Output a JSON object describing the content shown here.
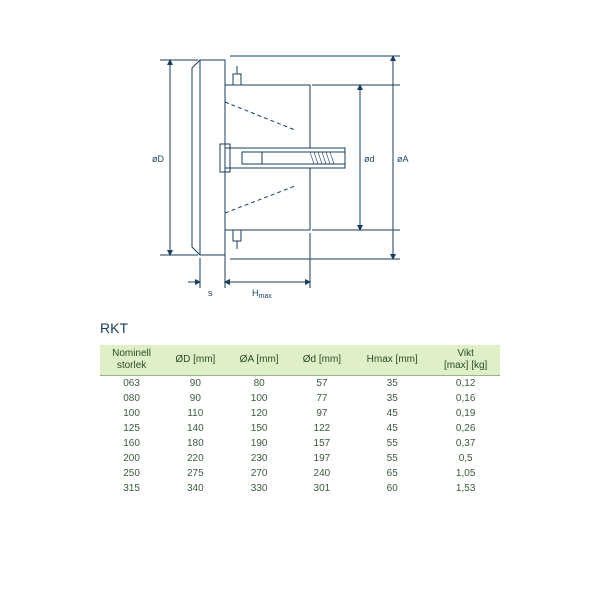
{
  "diagram": {
    "labels": {
      "oD": "øD",
      "od": "ød",
      "oA": "øA",
      "s": "s",
      "Hmax": "Hmax"
    },
    "stroke_color": "#1a3d5c",
    "stroke_width": 1,
    "background": "#ffffff"
  },
  "title": "RKT",
  "table": {
    "header_bg": "#dff0c8",
    "text_color": "#2a4a2a",
    "border_color": "#9ab58a",
    "fontsize": 10,
    "columns": [
      "Nominell\nstorlek",
      "ØD [mm]",
      "ØA [mm]",
      "Ød [mm]",
      "Hmax [mm]",
      "Vikt\n[max] [kg]"
    ],
    "rows": [
      [
        "063",
        "90",
        "80",
        "57",
        "35",
        "0,12"
      ],
      [
        "080",
        "90",
        "100",
        "77",
        "35",
        "0,16"
      ],
      [
        "100",
        "110",
        "120",
        "97",
        "45",
        "0,19"
      ],
      [
        "125",
        "140",
        "150",
        "122",
        "45",
        "0,26"
      ],
      [
        "160",
        "180",
        "190",
        "157",
        "55",
        "0,37"
      ],
      [
        "200",
        "220",
        "230",
        "197",
        "55",
        "0,5"
      ],
      [
        "250",
        "275",
        "270",
        "240",
        "65",
        "1,05"
      ],
      [
        "315",
        "340",
        "330",
        "301",
        "60",
        "1,53"
      ]
    ]
  }
}
